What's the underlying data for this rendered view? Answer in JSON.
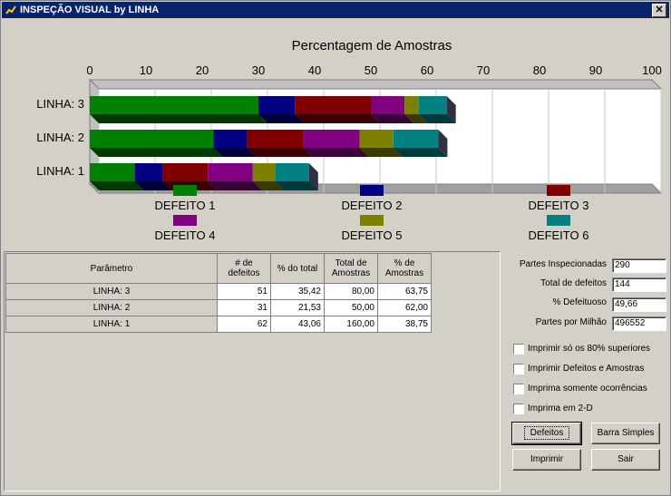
{
  "window": {
    "title": "INSPEÇÃO VISUAL by LINHA",
    "close_glyph": "✕",
    "icon": "chart-app-icon"
  },
  "chart_data": {
    "type": "bar",
    "title": "Percentagem de Amostras",
    "xlim": [
      0,
      100
    ],
    "xticks": [
      0,
      10,
      20,
      30,
      40,
      50,
      60,
      70,
      80,
      90,
      100
    ],
    "grid": true,
    "stacked": true,
    "orientation": "horizontal",
    "legend_position": "bottom",
    "categories": [
      "LINHA: 3",
      "LINHA: 2",
      "LINHA: 1"
    ],
    "series": [
      {
        "name": "DEFEITO 1",
        "color": "#008000",
        "values": [
          30,
          22,
          8
        ]
      },
      {
        "name": "DEFEITO 2",
        "color": "#000080",
        "values": [
          6.5,
          6,
          5
        ]
      },
      {
        "name": "DEFEITO 3",
        "color": "#800000",
        "values": [
          13.5,
          10,
          8
        ]
      },
      {
        "name": "DEFEITO 4",
        "color": "#800080",
        "values": [
          6,
          10,
          8
        ]
      },
      {
        "name": "DEFEITO 5",
        "color": "#808000",
        "values": [
          2.5,
          6,
          4
        ]
      },
      {
        "name": "DEFEITO 6",
        "color": "#008080",
        "values": [
          5,
          8,
          6
        ]
      }
    ]
  },
  "table": {
    "headers": [
      "Parâmetro",
      "# de defeitos",
      "% do total",
      "Total de Amostras",
      "% de Amostras"
    ],
    "rows": [
      {
        "label": "LINHA: 3",
        "cells": [
          "51",
          "35,42",
          "80,00",
          "63,75"
        ]
      },
      {
        "label": "LINHA: 2",
        "cells": [
          "31",
          "21,53",
          "50,00",
          "62,00"
        ]
      },
      {
        "label": "LINHA: 1",
        "cells": [
          "62",
          "43,06",
          "160,00",
          "38,75"
        ]
      }
    ]
  },
  "summary": {
    "partes_inspecionadas_label": "Partes Inspecionadas",
    "partes_inspecionadas": "290",
    "total_defeitos_label": "Total de defeitos",
    "total_defeitos": "144",
    "pct_defeituoso_label": "% Defeituoso",
    "pct_defeituoso": "49,66",
    "ppm_label": "Partes por Milhão",
    "ppm": "496552"
  },
  "options": {
    "opt1": "Imprimir só os 80% superiores",
    "opt2": "Imprimir Defeitos e Amostras",
    "opt3": "Imprima somente ocorrências",
    "opt4": "Imprima em 2-D"
  },
  "buttons": {
    "defeitos": "Defeitos",
    "barra_simples": "Barra Simples",
    "imprimir": "Imprimir",
    "sair": "Sair"
  }
}
